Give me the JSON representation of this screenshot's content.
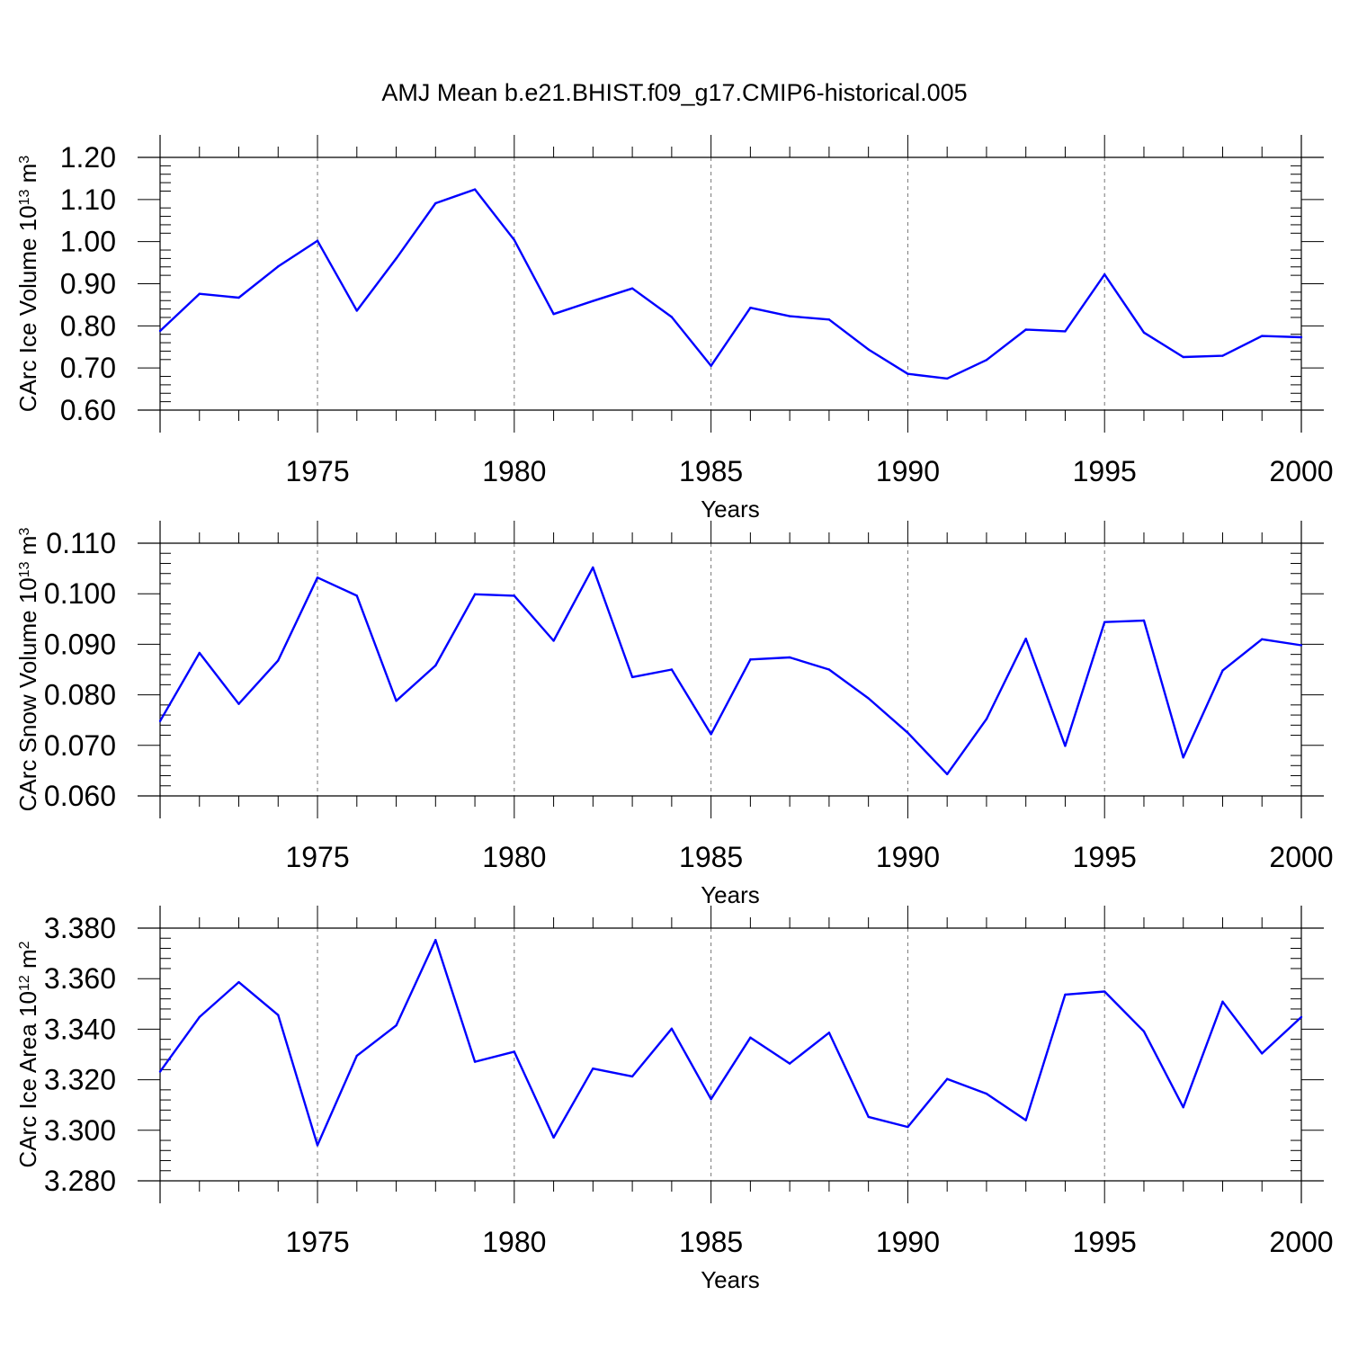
{
  "title": "AMJ Mean b.e21.BHIST.f09_g17.CMIP6-historical.005",
  "line_color": "#0000ff",
  "chart_data": [
    {
      "type": "line",
      "ylabel": {
        "text": "CArc Ice Volume 10",
        "exp": "13",
        "unit": " m",
        "unit_exp": "3"
      },
      "xlabel": "Years",
      "xlim": [
        1971,
        2000
      ],
      "xticks": [
        1975,
        1980,
        1985,
        1990,
        1995,
        2000
      ],
      "ylim": [
        0.6,
        1.2
      ],
      "yticks": [
        "0.60",
        "0.70",
        "0.80",
        "0.90",
        "1.00",
        "1.10",
        "1.20"
      ],
      "x": [
        1971,
        1972,
        1973,
        1974,
        1975,
        1976,
        1977,
        1978,
        1979,
        1980,
        1981,
        1982,
        1983,
        1984,
        1985,
        1986,
        1987,
        1988,
        1989,
        1990,
        1991,
        1992,
        1993,
        1994,
        1995,
        1996,
        1997,
        1998,
        1999,
        2000
      ],
      "y": [
        0.788,
        0.876,
        0.867,
        0.941,
        1.002,
        0.836,
        0.96,
        1.091,
        1.124,
        1.004,
        0.828,
        0.859,
        0.889,
        0.821,
        0.705,
        0.843,
        0.823,
        0.815,
        0.744,
        0.686,
        0.675,
        0.719,
        0.791,
        0.787,
        0.922,
        0.784,
        0.726,
        0.729,
        0.776,
        0.773
      ]
    },
    {
      "type": "line",
      "ylabel": {
        "text": "CArc Snow Volume 10",
        "exp": "13",
        "unit": " m",
        "unit_exp": "3"
      },
      "xlabel": "Years",
      "xlim": [
        1971,
        2000
      ],
      "xticks": [
        1975,
        1980,
        1985,
        1990,
        1995,
        2000
      ],
      "ylim": [
        0.06,
        0.11
      ],
      "yticks": [
        "0.060",
        "0.070",
        "0.080",
        "0.090",
        "0.100",
        "0.110"
      ],
      "x": [
        1971,
        1972,
        1973,
        1974,
        1975,
        1976,
        1977,
        1978,
        1979,
        1980,
        1981,
        1982,
        1983,
        1984,
        1985,
        1986,
        1987,
        1988,
        1989,
        1990,
        1991,
        1992,
        1993,
        1994,
        1995,
        1996,
        1997,
        1998,
        1999,
        2000
      ],
      "y": [
        0.0748,
        0.0883,
        0.0782,
        0.0868,
        0.1032,
        0.0996,
        0.0788,
        0.0858,
        0.0999,
        0.0996,
        0.0907,
        0.1052,
        0.0835,
        0.085,
        0.0722,
        0.087,
        0.0874,
        0.085,
        0.0793,
        0.0725,
        0.0643,
        0.0752,
        0.0911,
        0.0699,
        0.0944,
        0.0947,
        0.0676,
        0.0848,
        0.091,
        0.0898
      ]
    },
    {
      "type": "line",
      "ylabel": {
        "text": "CArc Ice Area 10",
        "exp": "12",
        "unit": " m",
        "unit_exp": "2"
      },
      "xlabel": "Years",
      "xlim": [
        1971,
        2000
      ],
      "xticks": [
        1975,
        1980,
        1985,
        1990,
        1995,
        2000
      ],
      "ylim": [
        3.28,
        3.38
      ],
      "yticks": [
        "3.280",
        "3.300",
        "3.320",
        "3.340",
        "3.360",
        "3.380"
      ],
      "x": [
        1971,
        1972,
        1973,
        1974,
        1975,
        1976,
        1977,
        1978,
        1979,
        1980,
        1981,
        1982,
        1983,
        1984,
        1985,
        1986,
        1987,
        1988,
        1989,
        1990,
        1991,
        1992,
        1993,
        1994,
        1995,
        1996,
        1997,
        1998,
        1999,
        2000
      ],
      "y": [
        3.3232,
        3.3448,
        3.3586,
        3.3456,
        3.2941,
        3.3295,
        3.3415,
        3.3753,
        3.3271,
        3.3311,
        3.2971,
        3.3244,
        3.3213,
        3.3402,
        3.3123,
        3.3367,
        3.3264,
        3.3386,
        3.3053,
        3.3013,
        3.3203,
        3.3145,
        3.304,
        3.3537,
        3.3549,
        3.3391,
        3.3091,
        3.3509,
        3.3304,
        3.3448
      ]
    }
  ]
}
